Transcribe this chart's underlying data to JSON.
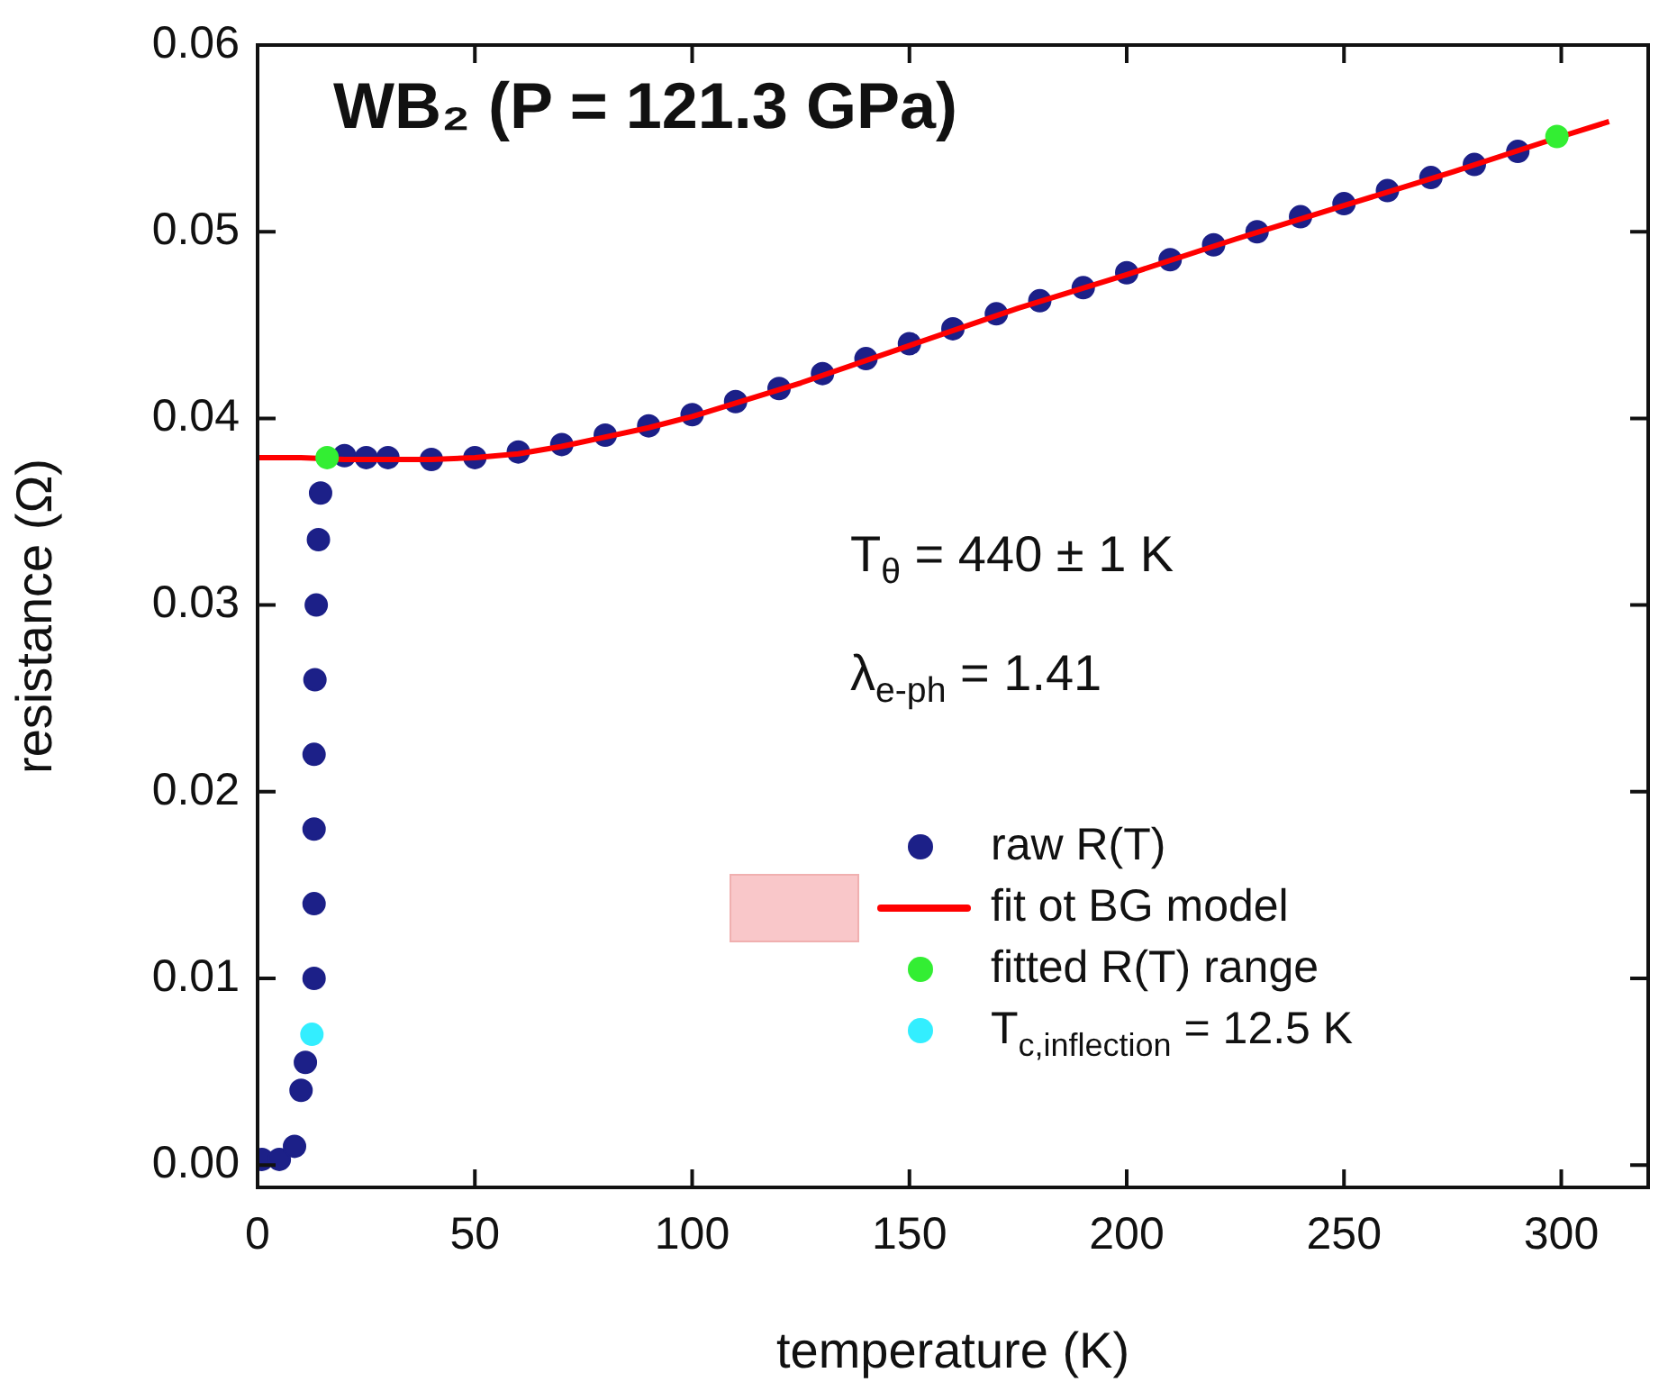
{
  "chart_data": {
    "type": "scatter",
    "title": "WB₂ (P = 121.3 GPa)",
    "xlabel": "temperature (K)",
    "ylabel": "resistance (Ω)",
    "annotations": [
      "T$_{θ}$ = 440 ± 1 K",
      "λ$_{e-ph}$ = 1.41"
    ],
    "xlim": [
      0,
      320
    ],
    "xticks": [
      0,
      50,
      100,
      150,
      200,
      250,
      300
    ],
    "ylim": [
      -0.0012,
      0.06
    ],
    "yticks": [
      {
        "value": 0,
        "label": "0.00"
      },
      {
        "value": 0.01,
        "label": "0.01"
      },
      {
        "value": 0.02,
        "label": "0.02"
      },
      {
        "value": 0.03,
        "label": "0.03"
      },
      {
        "value": 0.04,
        "label": "0.04"
      },
      {
        "value": 0.05,
        "label": "0.05"
      },
      {
        "value": 0.06,
        "label": "0.06"
      }
    ],
    "grid": false,
    "legend": "bottom right",
    "marker": "circle",
    "series": [
      {
        "name": "raw R(T)",
        "color": "#1c2088",
        "x": [
          1,
          5,
          8.5,
          10,
          11,
          13,
          13,
          13,
          13,
          13.2,
          13.5,
          14,
          14.5,
          20,
          25,
          30,
          40,
          50,
          60,
          70,
          80,
          90,
          100,
          110,
          120,
          130,
          140,
          150,
          160,
          170,
          180,
          190,
          200,
          210,
          220,
          230,
          240,
          250,
          260,
          270,
          280,
          290
        ],
        "values": [
          0.0003,
          0.0003,
          0.001,
          0.004,
          0.0055,
          0.01,
          0.014,
          0.018,
          0.022,
          0.026,
          0.03,
          0.0335,
          0.036,
          0.038,
          0.0379,
          0.0379,
          0.0378,
          0.0379,
          0.0382,
          0.0386,
          0.0391,
          0.0396,
          0.0402,
          0.0409,
          0.0416,
          0.0424,
          0.0432,
          0.044,
          0.0448,
          0.0456,
          0.0463,
          0.047,
          0.0478,
          0.0485,
          0.0493,
          0.05,
          0.0508,
          0.0515,
          0.0522,
          0.0529,
          0.0536,
          0.0543
        ]
      },
      {
        "name": "fit ot BG model",
        "type": "line",
        "marker": "none",
        "color": "#ff0000",
        "x": [
          0,
          10,
          20,
          30,
          40,
          50,
          60,
          70,
          80,
          90,
          100,
          125,
          150,
          175,
          200,
          225,
          250,
          275,
          300,
          311
        ],
        "values": [
          0.0379,
          0.0379,
          0.0378,
          0.0378,
          0.0378,
          0.0379,
          0.0381,
          0.0385,
          0.039,
          0.0395,
          0.0401,
          0.0419,
          0.0439,
          0.0459,
          0.0477,
          0.0496,
          0.0514,
          0.0532,
          0.0551,
          0.0559
        ]
      },
      {
        "name": "fitted R(T) range",
        "color": "#33ee33",
        "x": [
          16,
          299
        ],
        "values": [
          0.0379,
          0.0551
        ]
      },
      {
        "name": "T$_{c,inflection}$ = 12.5 K",
        "color": "#33eeff",
        "x": [
          12.5
        ],
        "values": [
          0.007
        ]
      }
    ]
  }
}
